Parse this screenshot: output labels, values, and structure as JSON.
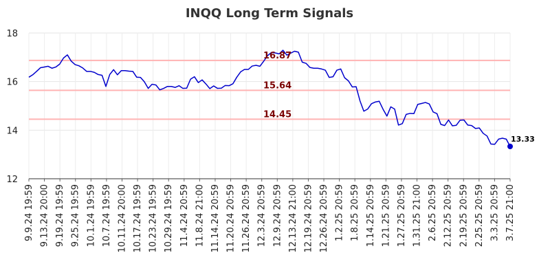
{
  "chart_data": {
    "type": "line",
    "title": "INQQ Long Term Signals",
    "xlabel": "",
    "ylabel": "",
    "ylim": [
      12,
      18
    ],
    "yticks": [
      12,
      14,
      16,
      18
    ],
    "grid": true,
    "line_color": "#0000cc",
    "signal_color": "#ffb3b3",
    "signal_label_color": "#7a0000",
    "signal_lines": [
      {
        "value": 16.87,
        "label": "16.87"
      },
      {
        "value": 15.64,
        "label": "15.64"
      },
      {
        "value": 14.45,
        "label": "14.45"
      }
    ],
    "xtick_labels": [
      "9.9.24 19:59",
      "9.13.24 20:00",
      "9.19.24 19:59",
      "9.25.24 19:59",
      "10.1.24 19:59",
      "10.7.24 19:59",
      "10.11.24 20:00",
      "10.17.24 19:59",
      "10.23.24 19:59",
      "10.29.24 19:59",
      "11.4.24 20:59",
      "11.8.24 21:00",
      "11.14.24 20:59",
      "11.20.24 20:59",
      "11.26.24 20:59",
      "12.3.24 20:59",
      "12.9.24 20:59",
      "12.13.24 21:00",
      "12.19.24 20:59",
      "12.26.24 20:59",
      "1.2.25 20:59",
      "1.8.25 20:59",
      "1.14.25 20:59",
      "1.21.25 20:59",
      "1.27.25 20:59",
      "1.31.25 21:00",
      "2.6.25 20:59",
      "2.12.25 20:59",
      "2.19.25 20:59",
      "2.25.25 20:59",
      "3.3.25 20:59",
      "3.7.25 21:00"
    ],
    "series": [
      {
        "values": [
          16.18,
          16.28,
          16.42,
          16.57,
          16.6,
          16.63,
          16.55,
          16.6,
          16.72,
          16.97,
          17.1,
          16.84,
          16.7,
          16.65,
          16.56,
          16.42,
          16.42,
          16.38,
          16.29,
          16.26,
          15.8,
          16.29,
          16.49,
          16.28,
          16.45,
          16.45,
          16.43,
          16.42,
          16.18,
          16.17,
          15.99,
          15.72,
          15.89,
          15.86,
          15.66,
          15.72,
          15.8,
          15.8,
          15.76,
          15.83,
          15.72,
          15.73,
          16.1,
          16.2,
          15.96,
          16.07,
          15.9,
          15.71,
          15.82,
          15.72,
          15.73,
          15.84,
          15.83,
          15.91,
          16.18,
          16.4,
          16.5,
          16.5,
          16.64,
          16.67,
          16.63,
          16.84,
          17.07,
          17.2,
          17.18,
          17.14,
          17.29,
          17.09,
          17.17,
          17.25,
          17.21,
          16.8,
          16.75,
          16.58,
          16.55,
          16.55,
          16.52,
          16.47,
          16.17,
          16.2,
          16.47,
          16.52,
          16.16,
          16.03,
          15.78,
          15.79,
          15.21,
          14.78,
          14.87,
          15.09,
          15.16,
          15.19,
          14.86,
          14.58,
          14.96,
          14.87,
          14.21,
          14.27,
          14.65,
          14.69,
          14.68,
          15.06,
          15.1,
          15.14,
          15.08,
          14.75,
          14.68,
          14.24,
          14.19,
          14.42,
          14.18,
          14.2,
          14.41,
          14.42,
          14.21,
          14.19,
          14.07,
          14.09,
          13.87,
          13.76,
          13.43,
          13.42,
          13.63,
          13.67,
          13.63,
          13.33
        ]
      }
    ],
    "last_point_label": "13.33"
  }
}
